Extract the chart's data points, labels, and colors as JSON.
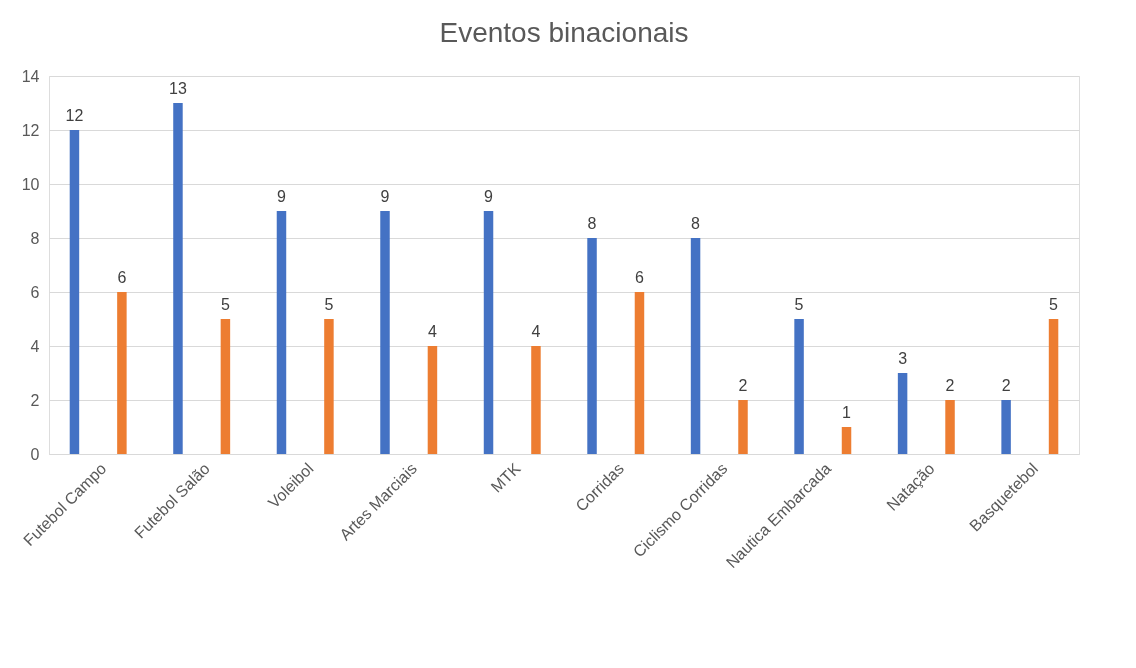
{
  "chart_data": {
    "type": "bar",
    "title": "Eventos binacionais",
    "categories": [
      "Futebol Campo",
      "Futebol Salão",
      "Voleibol",
      "Artes Marciais",
      "MTK",
      "Corridas",
      "Ciclismo Corridas",
      "Nautica Embarcada",
      "Natação",
      "Basquetebol"
    ],
    "series": [
      {
        "color": "#4472c4",
        "values": [
          12,
          13,
          9,
          9,
          9,
          8,
          8,
          5,
          3,
          2
        ]
      },
      {
        "color": "#ed7d31",
        "values": [
          6,
          5,
          5,
          4,
          4,
          6,
          2,
          1,
          2,
          5
        ]
      }
    ],
    "ylim": [
      0,
      14
    ],
    "yticks": [
      0,
      2,
      4,
      6,
      8,
      10,
      12,
      14
    ],
    "grid": "y",
    "data_labels": true
  }
}
